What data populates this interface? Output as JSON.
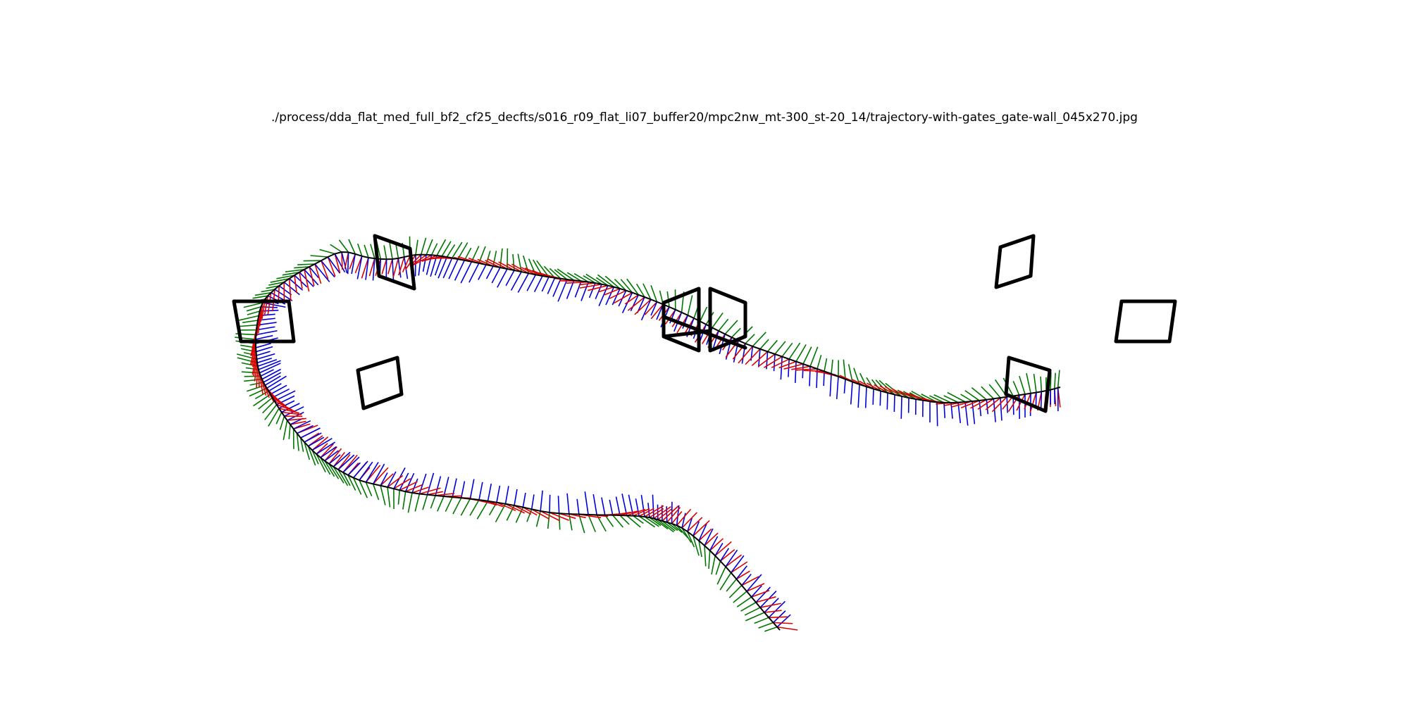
{
  "title": "./process/dda_flat_med_full_bf2_cf25_decfts/s016_r09_flat_li07_buffer20/mpc2nw_mt-300_st-20_14/trajectory-with-gates_gate-wall_045x270.jpg",
  "colors": {
    "background": "#ffffff",
    "gate": "#000000",
    "trajectory": "#000000",
    "axis_x": "#dd0000",
    "axis_y": "#007700",
    "axis_z": "#0000dd"
  },
  "legend": null
}
